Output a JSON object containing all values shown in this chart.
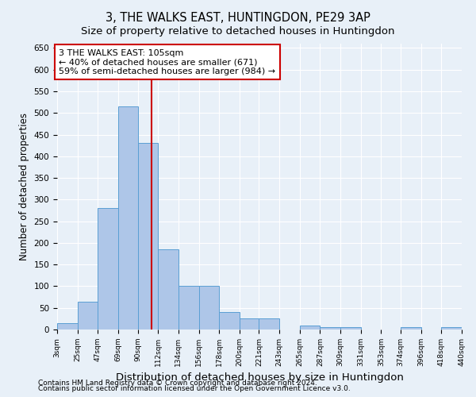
{
  "title": "3, THE WALKS EAST, HUNTINGDON, PE29 3AP",
  "subtitle": "Size of property relative to detached houses in Huntingdon",
  "xlabel": "Distribution of detached houses by size in Huntingdon",
  "ylabel": "Number of detached properties",
  "footnote1": "Contains HM Land Registry data © Crown copyright and database right 2024.",
  "footnote2": "Contains public sector information licensed under the Open Government Licence v3.0.",
  "annotation_title": "3 THE WALKS EAST: 105sqm",
  "annotation_line1": "← 40% of detached houses are smaller (671)",
  "annotation_line2": "59% of semi-detached houses are larger (984) →",
  "bar_left_edges": [
    3,
    25,
    47,
    69,
    90,
    112,
    134,
    156,
    178,
    200,
    221,
    243,
    265,
    287,
    309,
    331,
    353,
    374,
    396,
    418
  ],
  "bar_widths": [
    22,
    22,
    22,
    21,
    22,
    22,
    22,
    22,
    22,
    21,
    22,
    22,
    22,
    22,
    22,
    22,
    21,
    22,
    22,
    22
  ],
  "bar_heights": [
    15,
    65,
    280,
    515,
    430,
    185,
    100,
    100,
    40,
    25,
    25,
    0,
    10,
    5,
    5,
    0,
    0,
    5,
    0,
    5
  ],
  "bar_color": "#aec6e8",
  "bar_edge_color": "#5a9fd4",
  "vline_x": 105,
  "vline_color": "#cc0000",
  "vline_linewidth": 1.5,
  "ylim": [
    0,
    660
  ],
  "yticks": [
    0,
    50,
    100,
    150,
    200,
    250,
    300,
    350,
    400,
    450,
    500,
    550,
    600,
    650
  ],
  "tick_labels": [
    "3sqm",
    "25sqm",
    "47sqm",
    "69sqm",
    "90sqm",
    "112sqm",
    "134sqm",
    "156sqm",
    "178sqm",
    "200sqm",
    "221sqm",
    "243sqm",
    "265sqm",
    "287sqm",
    "309sqm",
    "331sqm",
    "353sqm",
    "374sqm",
    "396sqm",
    "418sqm",
    "440sqm"
  ],
  "background_color": "#e8f0f8",
  "plot_background_color": "#e8f0f8",
  "grid_color": "#ffffff",
  "title_fontsize": 10.5,
  "subtitle_fontsize": 9.5,
  "xlabel_fontsize": 9.5,
  "ylabel_fontsize": 8.5,
  "annotation_box_color": "#ffffff",
  "annotation_box_edge_color": "#cc0000",
  "annotation_fontsize": 8.0,
  "footnote_fontsize": 6.5
}
